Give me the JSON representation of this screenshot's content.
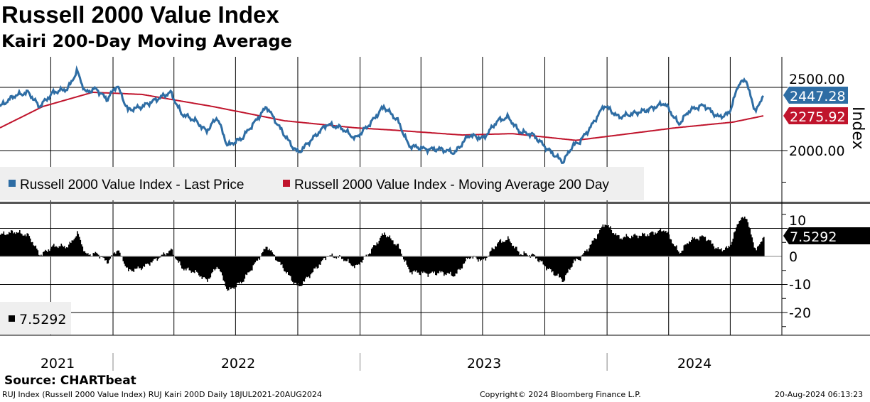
{
  "title": "Russell 2000 Value Index",
  "subtitle": "Kairi 200-Day Moving Average",
  "source": "Source: CHARTbeat",
  "footer": {
    "left": "RUJ Index (Russell 2000 Value Index) RUJ Kairi 200D  Daily 18JUL2021-20AUG2024",
    "center": "Copyright© 2024 Bloomberg Finance L.P.",
    "right": "20-Aug-2024 06:13:23"
  },
  "chart_data": [
    {
      "type": "line",
      "ylabel": "Index",
      "ylim": [
        1700,
        2850
      ],
      "yticks": [
        "2500.00",
        "2000.00"
      ],
      "xlim": [
        "2021-07-18",
        "2024-08-20"
      ],
      "colors": {
        "price": "#2e6da4",
        "ma": "#c0142c"
      },
      "last_values": {
        "price": "2447.28",
        "ma": "2275.92"
      },
      "legend": {
        "placement": "bottom-left",
        "entries": [
          "Russell 2000 Value Index - Last Price",
          "Russell 2000 Value Index - Moving Average 200 Day"
        ]
      },
      "series": [
        {
          "name": "Russell 2000 Value Index - Last Price",
          "points": [
            [
              "2021-07-18",
              2348
            ],
            [
              "2021-08-08",
              2433
            ],
            [
              "2021-08-29",
              2461
            ],
            [
              "2021-09-14",
              2348
            ],
            [
              "2021-10-05",
              2461
            ],
            [
              "2021-10-26",
              2489
            ],
            [
              "2021-11-09",
              2629
            ],
            [
              "2021-11-21",
              2461
            ],
            [
              "2021-12-07",
              2489
            ],
            [
              "2021-12-23",
              2404
            ],
            [
              "2022-01-07",
              2517
            ],
            [
              "2022-01-23",
              2320
            ],
            [
              "2022-02-13",
              2348
            ],
            [
              "2022-03-06",
              2404
            ],
            [
              "2022-03-27",
              2461
            ],
            [
              "2022-04-12",
              2292
            ],
            [
              "2022-05-03",
              2236
            ],
            [
              "2022-05-19",
              2152
            ],
            [
              "2022-06-04",
              2264
            ],
            [
              "2022-06-19",
              2039
            ],
            [
              "2022-07-10",
              2095
            ],
            [
              "2022-07-31",
              2236
            ],
            [
              "2022-08-16",
              2348
            ],
            [
              "2022-09-01",
              2208
            ],
            [
              "2022-09-22",
              2039
            ],
            [
              "2022-10-02",
              1983
            ],
            [
              "2022-10-23",
              2095
            ],
            [
              "2022-11-13",
              2208
            ],
            [
              "2022-12-04",
              2180
            ],
            [
              "2022-12-25",
              2095
            ],
            [
              "2023-01-15",
              2208
            ],
            [
              "2023-02-05",
              2348
            ],
            [
              "2023-02-26",
              2236
            ],
            [
              "2023-03-14",
              2039
            ],
            [
              "2023-04-09",
              2011
            ],
            [
              "2023-04-30",
              2011
            ],
            [
              "2023-05-21",
              1983
            ],
            [
              "2023-06-11",
              2123
            ],
            [
              "2023-07-02",
              2095
            ],
            [
              "2023-07-23",
              2236
            ],
            [
              "2023-08-08",
              2264
            ],
            [
              "2023-08-24",
              2152
            ],
            [
              "2023-09-14",
              2123
            ],
            [
              "2023-10-05",
              2011
            ],
            [
              "2023-10-28",
              1910
            ],
            [
              "2023-11-11",
              2039
            ],
            [
              "2023-11-21",
              2067
            ],
            [
              "2023-12-07",
              2180
            ],
            [
              "2023-12-28",
              2359
            ],
            [
              "2024-01-18",
              2264
            ],
            [
              "2024-02-08",
              2292
            ],
            [
              "2024-02-29",
              2320
            ],
            [
              "2024-03-26",
              2376
            ],
            [
              "2024-04-16",
              2208
            ],
            [
              "2024-05-02",
              2320
            ],
            [
              "2024-05-23",
              2359
            ],
            [
              "2024-06-13",
              2264
            ],
            [
              "2024-06-29",
              2292
            ],
            [
              "2024-07-15",
              2545
            ],
            [
              "2024-07-26",
              2545
            ],
            [
              "2024-08-05",
              2320
            ],
            [
              "2024-08-15",
              2376
            ],
            [
              "2024-08-20",
              2447.28
            ]
          ]
        },
        {
          "name": "Russell 2000 Value Index - Moving Average 200 Day",
          "points": [
            [
              "2021-07-18",
              2180
            ],
            [
              "2021-09-19",
              2348
            ],
            [
              "2021-12-02",
              2461
            ],
            [
              "2022-02-13",
              2444
            ],
            [
              "2022-05-29",
              2348
            ],
            [
              "2022-09-11",
              2236
            ],
            [
              "2022-12-25",
              2180
            ],
            [
              "2023-02-16",
              2163
            ],
            [
              "2023-06-01",
              2123
            ],
            [
              "2023-08-14",
              2134
            ],
            [
              "2023-11-16",
              2081
            ],
            [
              "2024-01-18",
              2123
            ],
            [
              "2024-04-11",
              2180
            ],
            [
              "2024-07-05",
              2225
            ],
            [
              "2024-08-20",
              2275.92
            ]
          ]
        }
      ]
    },
    {
      "type": "bar",
      "name": "RUJ Kairi 200D",
      "ylim": [
        -27,
        17
      ],
      "yticks": [
        "10",
        "0",
        "-10",
        "-20"
      ],
      "color": "#000000",
      "last_value": "7.5292",
      "legend": {
        "placement": "bottom-left",
        "entries": [
          "7.5292"
        ]
      }
    }
  ],
  "x_axis": {
    "years": [
      "2021",
      "2022",
      "2023",
      "2024"
    ]
  }
}
